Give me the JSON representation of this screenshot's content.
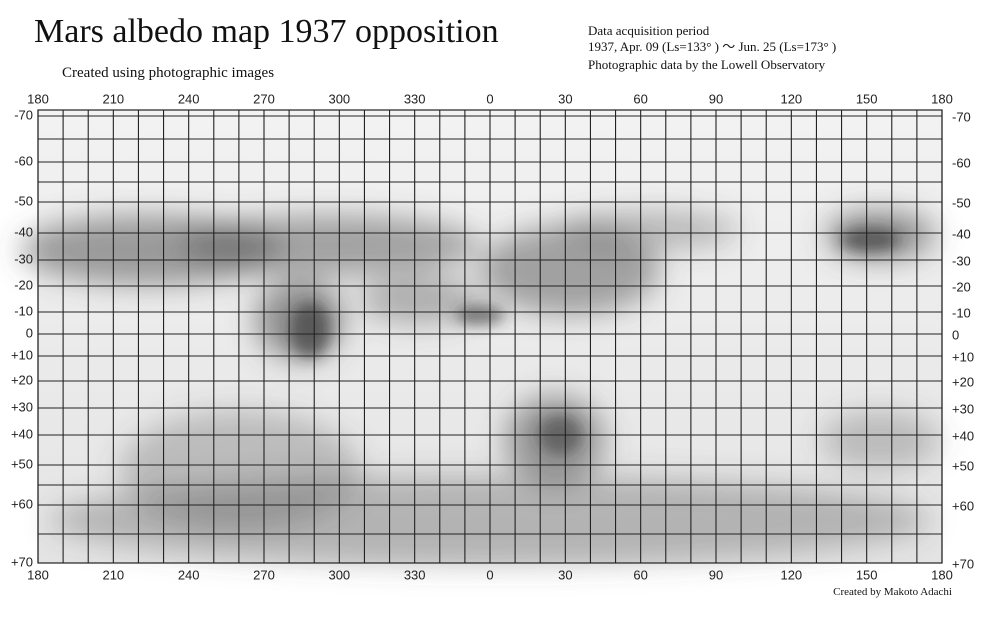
{
  "header": {
    "title": "Mars albedo map 1937 opposition",
    "subtitle": "Created using photographic images",
    "info": [
      "Data acquisition period",
      "1937, Apr. 09 (Ls=133° ) ～ Jun. 25 (Ls=173° )",
      "Photographic data by the Lowell Observatory"
    ]
  },
  "map": {
    "longitude_labels": [
      "180",
      "210",
      "240",
      "270",
      "300",
      "330",
      "0",
      "30",
      "60",
      "90",
      "120",
      "150",
      "180"
    ],
    "latitude_labels": [
      "-70",
      "-60",
      "-50",
      "-40",
      "-30",
      "-20",
      "-10",
      "0",
      "+10",
      "+20",
      "+30",
      "+40",
      "+50",
      "+60",
      "+70"
    ]
  },
  "footer": {
    "credit": "Created by Makoto Adachi"
  }
}
